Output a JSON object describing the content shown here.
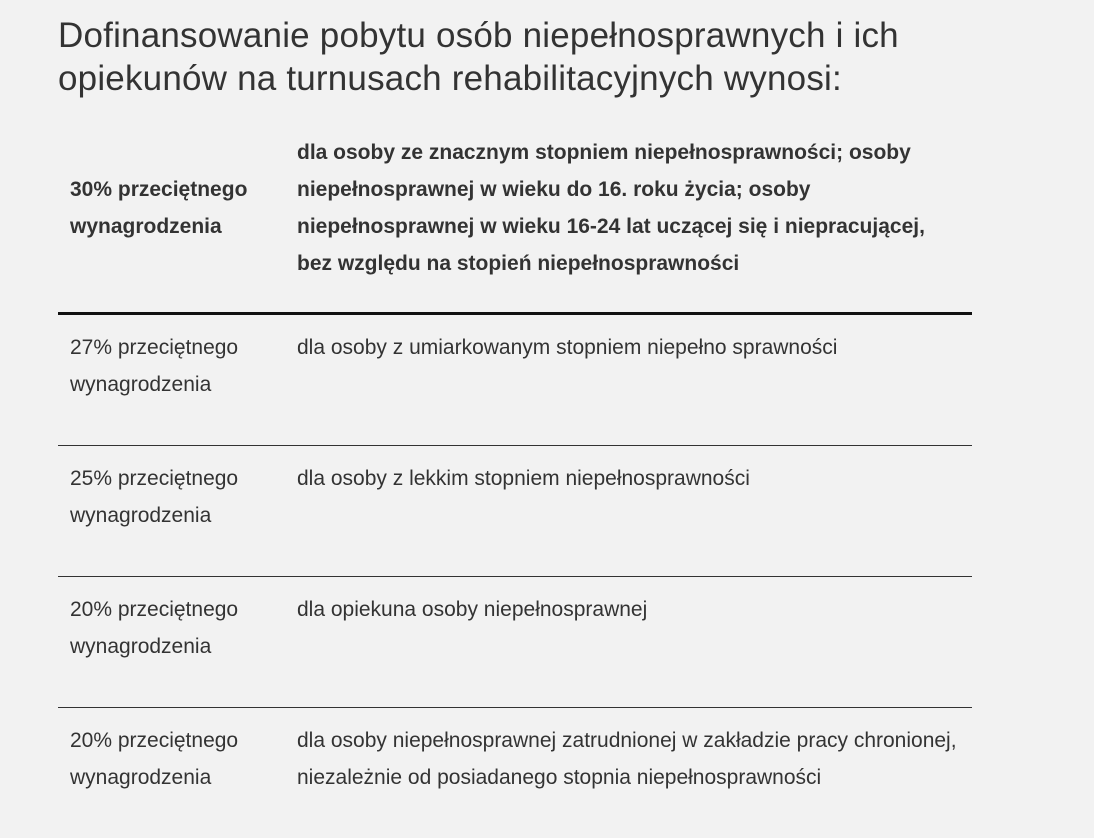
{
  "title": "Dofinansowanie pobytu osób niepełnosprawnych i ich opiekunów na turnusach rehabilitacyjnych wynosi:",
  "table": {
    "header": {
      "amount": "30% przeciętnego wynagrodzenia",
      "description": "dla osoby ze znacznym stopniem niepełnosprawności; osoby niepełnosprawnej w wieku do 16. roku życia; osoby niepełnosprawnej w wieku 16-24 lat uczącej się i niepracującej, bez względu na stopień niepełnosprawności"
    },
    "rows": [
      {
        "amount": "27% przeciętnego wynagrodzenia",
        "description": "dla osoby z umiarkowanym stopniem niepełno sprawności"
      },
      {
        "amount": "25% przeciętnego wynagrodzenia",
        "description": "dla osoby z lekkim stopniem niepełnosprawności"
      },
      {
        "amount": "20% przeciętnego wynagrodzenia",
        "description": "dla opiekuna osoby niepełnosprawnej"
      },
      {
        "amount": "20% przeciętnego wynagrodzenia",
        "description": "dla osoby niepełnosprawnej zatrudnionej w zakładzie pracy chronionej, niezależnie od posiadanego stopnia niepełnosprawności"
      }
    ]
  }
}
